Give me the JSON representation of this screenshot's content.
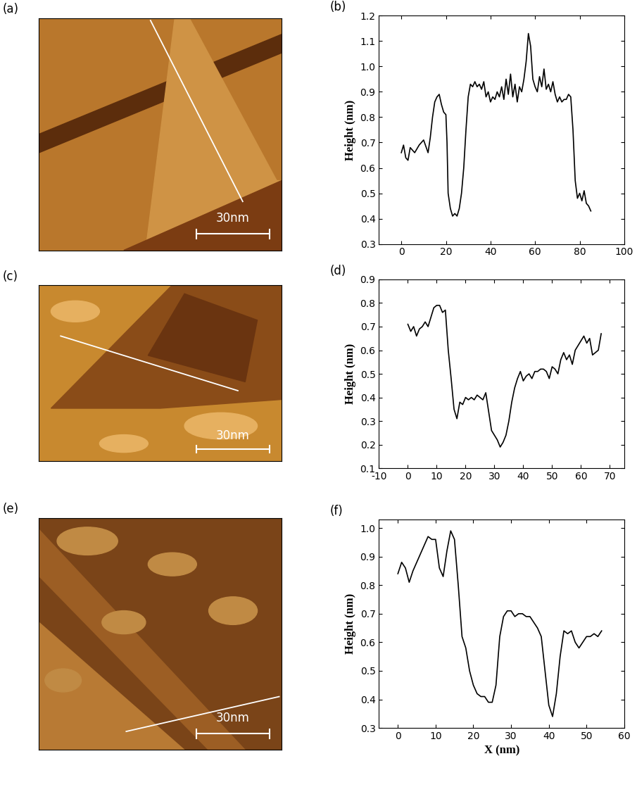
{
  "chart_data": [
    {
      "type": "image",
      "title": "(a)",
      "annotations": [
        "30nm"
      ],
      "tick_labels": false
    },
    {
      "type": "line",
      "title": "(b)",
      "y_label": "Height (nm)",
      "color": "#000000",
      "x": [
        0,
        1,
        2,
        3,
        4,
        6,
        8,
        10,
        12,
        13,
        14,
        15,
        16,
        17,
        18,
        19,
        20,
        20.5,
        21,
        22,
        23,
        24,
        25,
        26,
        27,
        28,
        29,
        30,
        31,
        32,
        33,
        34,
        35,
        36,
        37,
        38,
        39,
        40,
        41,
        42,
        43,
        44,
        45,
        46,
        47,
        48,
        49,
        50,
        51,
        52,
        53,
        54,
        55,
        56,
        57,
        58,
        59,
        60,
        61,
        62,
        63,
        64,
        65,
        66,
        67,
        68,
        69,
        70,
        71,
        72,
        73,
        74,
        75,
        76,
        77,
        78,
        79,
        80,
        81,
        82,
        83,
        84,
        85
      ],
      "values": [
        0.66,
        0.69,
        0.64,
        0.63,
        0.68,
        0.66,
        0.69,
        0.71,
        0.66,
        0.72,
        0.8,
        0.86,
        0.88,
        0.89,
        0.85,
        0.82,
        0.81,
        0.7,
        0.5,
        0.44,
        0.41,
        0.42,
        0.41,
        0.44,
        0.5,
        0.6,
        0.75,
        0.88,
        0.93,
        0.92,
        0.94,
        0.92,
        0.93,
        0.91,
        0.94,
        0.88,
        0.9,
        0.86,
        0.88,
        0.87,
        0.9,
        0.88,
        0.92,
        0.87,
        0.95,
        0.89,
        0.97,
        0.88,
        0.93,
        0.86,
        0.92,
        0.9,
        0.95,
        1.02,
        1.13,
        1.08,
        0.95,
        0.92,
        0.9,
        0.96,
        0.92,
        0.99,
        0.91,
        0.93,
        0.9,
        0.94,
        0.89,
        0.86,
        0.88,
        0.86,
        0.87,
        0.87,
        0.89,
        0.88,
        0.75,
        0.55,
        0.48,
        0.5,
        0.47,
        0.51,
        0.46,
        0.45,
        0.43
      ],
      "xlim": [
        -10,
        100
      ],
      "xticks": [
        0,
        20,
        40,
        60,
        80,
        100
      ],
      "ylim": [
        0.3,
        1.2
      ],
      "yticks": [
        0.3,
        0.4,
        0.5,
        0.6,
        0.7,
        0.8,
        0.9,
        1.0,
        1.1,
        1.2
      ]
    },
    {
      "type": "image",
      "title": "(c)",
      "annotations": [
        "30nm"
      ],
      "tick_labels": false
    },
    {
      "type": "line",
      "title": "(d)",
      "y_label": "Height (nm)",
      "color": "#000000",
      "x": [
        0,
        1,
        2,
        3,
        4,
        5,
        6,
        7,
        8,
        9,
        10,
        11,
        12,
        13,
        14,
        15,
        16,
        17,
        18,
        19,
        20,
        21,
        22,
        23,
        24,
        25,
        26,
        27,
        28,
        29,
        30,
        31,
        32,
        33,
        34,
        35,
        36,
        37,
        38,
        39,
        40,
        41,
        42,
        43,
        44,
        45,
        46,
        47,
        48,
        49,
        50,
        51,
        52,
        53,
        54,
        55,
        56,
        57,
        58,
        59,
        60,
        61,
        62,
        63,
        64,
        65,
        66,
        67
      ],
      "values": [
        0.71,
        0.68,
        0.7,
        0.66,
        0.69,
        0.7,
        0.72,
        0.7,
        0.74,
        0.78,
        0.79,
        0.79,
        0.76,
        0.77,
        0.6,
        0.48,
        0.35,
        0.31,
        0.38,
        0.37,
        0.4,
        0.39,
        0.4,
        0.39,
        0.41,
        0.4,
        0.39,
        0.42,
        0.34,
        0.26,
        0.24,
        0.22,
        0.19,
        0.21,
        0.24,
        0.3,
        0.38,
        0.44,
        0.48,
        0.51,
        0.47,
        0.49,
        0.5,
        0.48,
        0.51,
        0.51,
        0.52,
        0.52,
        0.51,
        0.48,
        0.53,
        0.52,
        0.5,
        0.56,
        0.59,
        0.56,
        0.58,
        0.54,
        0.6,
        0.62,
        0.64,
        0.66,
        0.63,
        0.65,
        0.58,
        0.59,
        0.6,
        0.67
      ],
      "xlim": [
        -10,
        75
      ],
      "xticks": [
        -10,
        0,
        10,
        20,
        30,
        40,
        50,
        60,
        70
      ],
      "ylim": [
        0.1,
        0.9
      ],
      "yticks": [
        0.1,
        0.2,
        0.3,
        0.4,
        0.5,
        0.6,
        0.7,
        0.8,
        0.9
      ]
    },
    {
      "type": "image",
      "title": "(e)",
      "annotations": [
        "30nm"
      ],
      "tick_labels": false
    },
    {
      "type": "line",
      "title": "(f)",
      "x_label": "X (nm)",
      "y_label": "Height (nm)",
      "color": "#000000",
      "x": [
        0,
        1,
        2,
        3,
        4,
        5,
        6,
        7,
        8,
        9,
        10,
        11,
        12,
        13,
        14,
        15,
        16,
        17,
        18,
        19,
        20,
        21,
        22,
        23,
        24,
        25,
        26,
        27,
        28,
        29,
        30,
        31,
        32,
        33,
        34,
        35,
        36,
        37,
        38,
        39,
        40,
        41,
        42,
        43,
        44,
        45,
        46,
        47,
        48,
        49,
        50,
        51,
        52,
        53,
        54
      ],
      "values": [
        0.84,
        0.88,
        0.86,
        0.81,
        0.85,
        0.88,
        0.91,
        0.94,
        0.97,
        0.96,
        0.96,
        0.86,
        0.83,
        0.92,
        0.99,
        0.96,
        0.8,
        0.62,
        0.58,
        0.5,
        0.45,
        0.42,
        0.41,
        0.41,
        0.39,
        0.39,
        0.45,
        0.62,
        0.69,
        0.71,
        0.71,
        0.69,
        0.7,
        0.7,
        0.69,
        0.69,
        0.67,
        0.65,
        0.62,
        0.5,
        0.38,
        0.34,
        0.42,
        0.55,
        0.64,
        0.63,
        0.64,
        0.6,
        0.58,
        0.6,
        0.62,
        0.62,
        0.63,
        0.62,
        0.64
      ],
      "xlim": [
        -5,
        60
      ],
      "xticks": [
        0,
        10,
        20,
        30,
        40,
        50,
        60
      ],
      "ylim": [
        0.3,
        1.03
      ],
      "yticks": [
        0.3,
        0.4,
        0.5,
        0.6,
        0.7,
        0.8,
        0.9,
        1.0
      ]
    }
  ]
}
